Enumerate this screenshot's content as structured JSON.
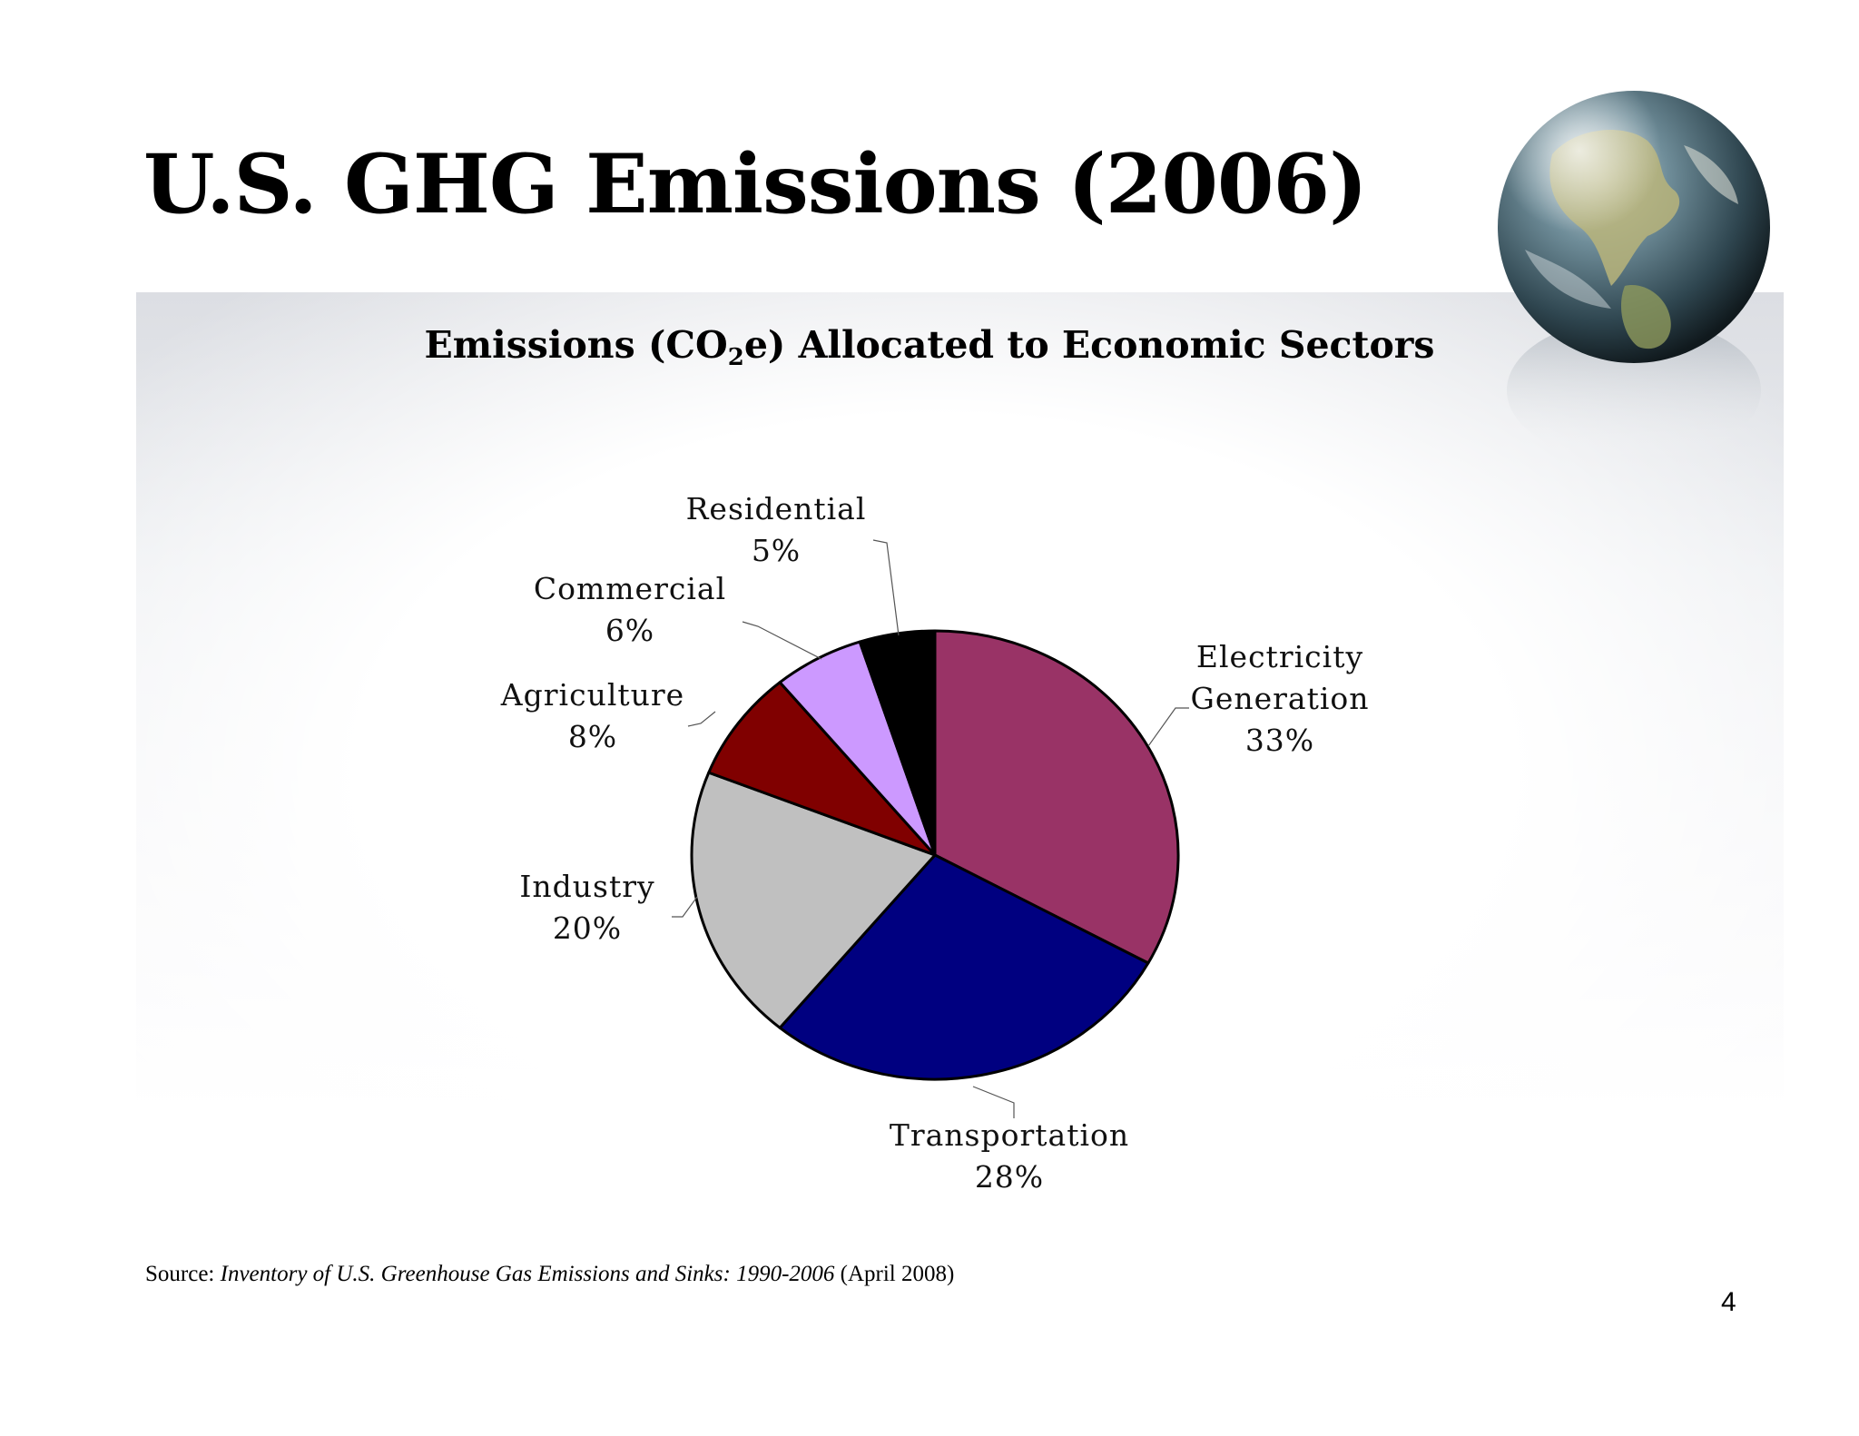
{
  "slide": {
    "title": "U.S. GHG Emissions (2006)",
    "page_number": "4",
    "source": {
      "prefix": "Source: ",
      "title_italic": "Inventory of U.S. Greenhouse Gas Emissions and Sinks: 1990-2006",
      "suffix": " (April 2008)"
    }
  },
  "chart_title": {
    "before_sub": "Emissions (CO",
    "sub": "2",
    "after_sub": "e) Allocated to Economic Sectors"
  },
  "chart_data": {
    "type": "pie",
    "title": "Emissions (CO2e) Allocated to Economic Sectors",
    "unit": "%",
    "start": "12 o'clock, clockwise",
    "slices": [
      {
        "name": "Electricity Generation",
        "label_lines": [
          "Electricity",
          "Generation",
          "33%"
        ],
        "value": 33,
        "color": "#993366"
      },
      {
        "name": "Transportation",
        "label_lines": [
          "Transportation",
          "28%"
        ],
        "value": 28,
        "color": "#000080"
      },
      {
        "name": "Industry",
        "label_lines": [
          "Industry",
          "20%"
        ],
        "value": 20,
        "color": "#c0c0c0"
      },
      {
        "name": "Agriculture",
        "label_lines": [
          "Agriculture",
          "8%"
        ],
        "value": 8,
        "color": "#800000"
      },
      {
        "name": "Commercial",
        "label_lines": [
          "Commercial",
          "6%"
        ],
        "value": 6,
        "color": "#cc99ff"
      },
      {
        "name": "Residential",
        "label_lines": [
          "Residential",
          "5%"
        ],
        "value": 5,
        "color": "#000000"
      }
    ]
  }
}
